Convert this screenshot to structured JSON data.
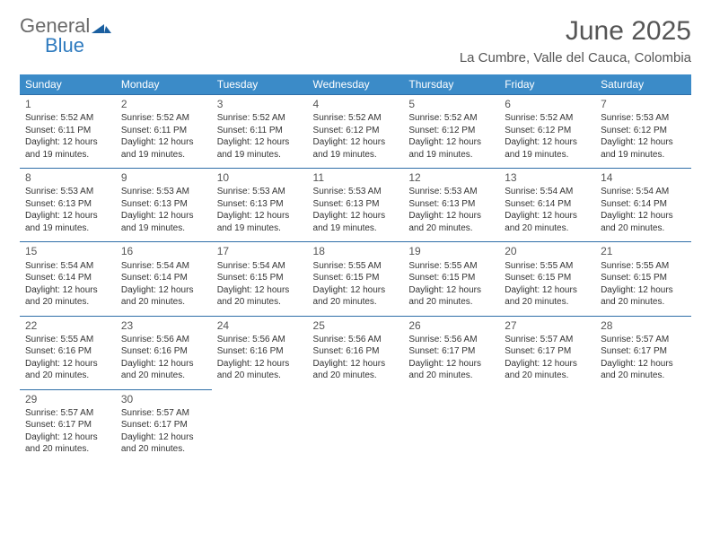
{
  "brand": {
    "name1": "General",
    "name2": "Blue",
    "color_general": "#6a6a6a",
    "color_blue": "#2f7bbf",
    "mark_color": "#1a5fa0"
  },
  "title": "June 2025",
  "location": "La Cumbre, Valle del Cauca, Colombia",
  "colors": {
    "header_bg": "#3b8bc8",
    "header_text": "#ffffff",
    "row_border": "#2f6fa8",
    "body_text": "#333333",
    "title_text": "#555555",
    "background": "#ffffff"
  },
  "typography": {
    "title_fontsize": 30,
    "location_fontsize": 15,
    "dayheader_fontsize": 12,
    "daynum_fontsize": 12,
    "cell_fontsize": 10
  },
  "day_headers": [
    "Sunday",
    "Monday",
    "Tuesday",
    "Wednesday",
    "Thursday",
    "Friday",
    "Saturday"
  ],
  "weeks": [
    [
      {
        "n": "1",
        "sr": "Sunrise: 5:52 AM",
        "ss": "Sunset: 6:11 PM",
        "d1": "Daylight: 12 hours",
        "d2": "and 19 minutes."
      },
      {
        "n": "2",
        "sr": "Sunrise: 5:52 AM",
        "ss": "Sunset: 6:11 PM",
        "d1": "Daylight: 12 hours",
        "d2": "and 19 minutes."
      },
      {
        "n": "3",
        "sr": "Sunrise: 5:52 AM",
        "ss": "Sunset: 6:11 PM",
        "d1": "Daylight: 12 hours",
        "d2": "and 19 minutes."
      },
      {
        "n": "4",
        "sr": "Sunrise: 5:52 AM",
        "ss": "Sunset: 6:12 PM",
        "d1": "Daylight: 12 hours",
        "d2": "and 19 minutes."
      },
      {
        "n": "5",
        "sr": "Sunrise: 5:52 AM",
        "ss": "Sunset: 6:12 PM",
        "d1": "Daylight: 12 hours",
        "d2": "and 19 minutes."
      },
      {
        "n": "6",
        "sr": "Sunrise: 5:52 AM",
        "ss": "Sunset: 6:12 PM",
        "d1": "Daylight: 12 hours",
        "d2": "and 19 minutes."
      },
      {
        "n": "7",
        "sr": "Sunrise: 5:53 AM",
        "ss": "Sunset: 6:12 PM",
        "d1": "Daylight: 12 hours",
        "d2": "and 19 minutes."
      }
    ],
    [
      {
        "n": "8",
        "sr": "Sunrise: 5:53 AM",
        "ss": "Sunset: 6:13 PM",
        "d1": "Daylight: 12 hours",
        "d2": "and 19 minutes."
      },
      {
        "n": "9",
        "sr": "Sunrise: 5:53 AM",
        "ss": "Sunset: 6:13 PM",
        "d1": "Daylight: 12 hours",
        "d2": "and 19 minutes."
      },
      {
        "n": "10",
        "sr": "Sunrise: 5:53 AM",
        "ss": "Sunset: 6:13 PM",
        "d1": "Daylight: 12 hours",
        "d2": "and 19 minutes."
      },
      {
        "n": "11",
        "sr": "Sunrise: 5:53 AM",
        "ss": "Sunset: 6:13 PM",
        "d1": "Daylight: 12 hours",
        "d2": "and 19 minutes."
      },
      {
        "n": "12",
        "sr": "Sunrise: 5:53 AM",
        "ss": "Sunset: 6:13 PM",
        "d1": "Daylight: 12 hours",
        "d2": "and 20 minutes."
      },
      {
        "n": "13",
        "sr": "Sunrise: 5:54 AM",
        "ss": "Sunset: 6:14 PM",
        "d1": "Daylight: 12 hours",
        "d2": "and 20 minutes."
      },
      {
        "n": "14",
        "sr": "Sunrise: 5:54 AM",
        "ss": "Sunset: 6:14 PM",
        "d1": "Daylight: 12 hours",
        "d2": "and 20 minutes."
      }
    ],
    [
      {
        "n": "15",
        "sr": "Sunrise: 5:54 AM",
        "ss": "Sunset: 6:14 PM",
        "d1": "Daylight: 12 hours",
        "d2": "and 20 minutes."
      },
      {
        "n": "16",
        "sr": "Sunrise: 5:54 AM",
        "ss": "Sunset: 6:14 PM",
        "d1": "Daylight: 12 hours",
        "d2": "and 20 minutes."
      },
      {
        "n": "17",
        "sr": "Sunrise: 5:54 AM",
        "ss": "Sunset: 6:15 PM",
        "d1": "Daylight: 12 hours",
        "d2": "and 20 minutes."
      },
      {
        "n": "18",
        "sr": "Sunrise: 5:55 AM",
        "ss": "Sunset: 6:15 PM",
        "d1": "Daylight: 12 hours",
        "d2": "and 20 minutes."
      },
      {
        "n": "19",
        "sr": "Sunrise: 5:55 AM",
        "ss": "Sunset: 6:15 PM",
        "d1": "Daylight: 12 hours",
        "d2": "and 20 minutes."
      },
      {
        "n": "20",
        "sr": "Sunrise: 5:55 AM",
        "ss": "Sunset: 6:15 PM",
        "d1": "Daylight: 12 hours",
        "d2": "and 20 minutes."
      },
      {
        "n": "21",
        "sr": "Sunrise: 5:55 AM",
        "ss": "Sunset: 6:15 PM",
        "d1": "Daylight: 12 hours",
        "d2": "and 20 minutes."
      }
    ],
    [
      {
        "n": "22",
        "sr": "Sunrise: 5:55 AM",
        "ss": "Sunset: 6:16 PM",
        "d1": "Daylight: 12 hours",
        "d2": "and 20 minutes."
      },
      {
        "n": "23",
        "sr": "Sunrise: 5:56 AM",
        "ss": "Sunset: 6:16 PM",
        "d1": "Daylight: 12 hours",
        "d2": "and 20 minutes."
      },
      {
        "n": "24",
        "sr": "Sunrise: 5:56 AM",
        "ss": "Sunset: 6:16 PM",
        "d1": "Daylight: 12 hours",
        "d2": "and 20 minutes."
      },
      {
        "n": "25",
        "sr": "Sunrise: 5:56 AM",
        "ss": "Sunset: 6:16 PM",
        "d1": "Daylight: 12 hours",
        "d2": "and 20 minutes."
      },
      {
        "n": "26",
        "sr": "Sunrise: 5:56 AM",
        "ss": "Sunset: 6:17 PM",
        "d1": "Daylight: 12 hours",
        "d2": "and 20 minutes."
      },
      {
        "n": "27",
        "sr": "Sunrise: 5:57 AM",
        "ss": "Sunset: 6:17 PM",
        "d1": "Daylight: 12 hours",
        "d2": "and 20 minutes."
      },
      {
        "n": "28",
        "sr": "Sunrise: 5:57 AM",
        "ss": "Sunset: 6:17 PM",
        "d1": "Daylight: 12 hours",
        "d2": "and 20 minutes."
      }
    ],
    [
      {
        "n": "29",
        "sr": "Sunrise: 5:57 AM",
        "ss": "Sunset: 6:17 PM",
        "d1": "Daylight: 12 hours",
        "d2": "and 20 minutes."
      },
      {
        "n": "30",
        "sr": "Sunrise: 5:57 AM",
        "ss": "Sunset: 6:17 PM",
        "d1": "Daylight: 12 hours",
        "d2": "and 20 minutes."
      },
      null,
      null,
      null,
      null,
      null
    ]
  ]
}
